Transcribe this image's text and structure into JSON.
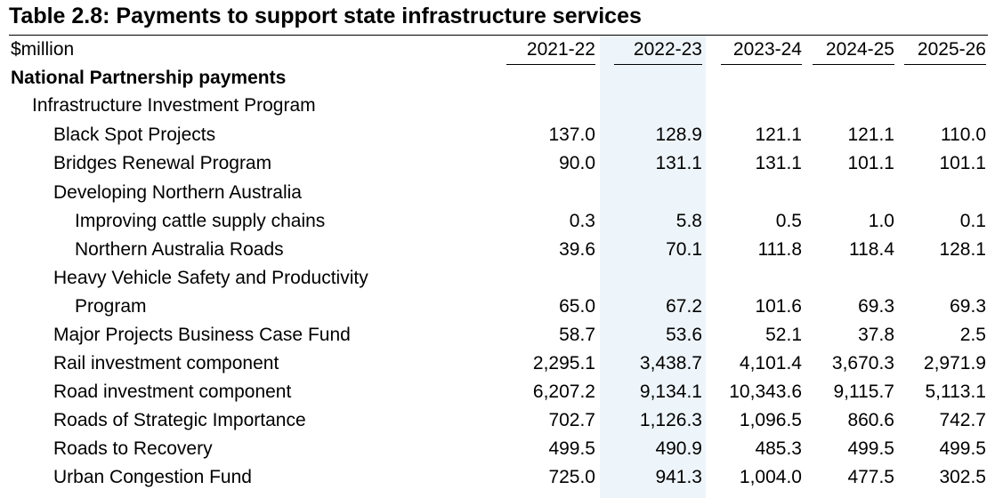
{
  "title": "Table 2.8: Payments to support state infrastructure services",
  "unit_label": "$million",
  "years": [
    "2021-22",
    "2022-23",
    "2023-24",
    "2024-25",
    "2025-26"
  ],
  "rows": [
    {
      "label": "National Partnership payments",
      "values": [
        "",
        "",
        "",
        "",
        ""
      ]
    },
    {
      "label": "Infrastructure Investment Program",
      "values": [
        "",
        "",
        "",
        "",
        ""
      ]
    },
    {
      "label": "Black Spot Projects",
      "values": [
        "137.0",
        "128.9",
        "121.1",
        "121.1",
        "110.0"
      ]
    },
    {
      "label": "Bridges Renewal Program",
      "values": [
        "90.0",
        "131.1",
        "131.1",
        "101.1",
        "101.1"
      ]
    },
    {
      "label": "Developing Northern Australia",
      "values": [
        "",
        "",
        "",
        "",
        ""
      ]
    },
    {
      "label": "Improving cattle supply chains",
      "values": [
        "0.3",
        "5.8",
        "0.5",
        "1.0",
        "0.1"
      ]
    },
    {
      "label": "Northern Australia Roads",
      "values": [
        "39.6",
        "70.1",
        "111.8",
        "118.4",
        "128.1"
      ]
    },
    {
      "label": "Heavy Vehicle Safety and Productivity",
      "values": [
        "",
        "",
        "",
        "",
        ""
      ]
    },
    {
      "label": "Program",
      "values": [
        "65.0",
        "67.2",
        "101.6",
        "69.3",
        "69.3"
      ]
    },
    {
      "label": "Major Projects Business Case Fund",
      "values": [
        "58.7",
        "53.6",
        "52.1",
        "37.8",
        "2.5"
      ]
    },
    {
      "label": "Rail investment component",
      "values": [
        "2,295.1",
        "3,438.7",
        "4,101.4",
        "3,670.3",
        "2,971.9"
      ]
    },
    {
      "label": "Road investment component",
      "values": [
        "6,207.2",
        "9,134.1",
        "10,343.6",
        "9,115.7",
        "5,113.1"
      ]
    },
    {
      "label": "Roads of Strategic Importance",
      "values": [
        "702.7",
        "1,126.3",
        "1,096.5",
        "860.6",
        "742.7"
      ]
    },
    {
      "label": "Roads to Recovery",
      "values": [
        "499.5",
        "490.9",
        "485.3",
        "499.5",
        "499.5"
      ]
    },
    {
      "label": "Urban Congestion Fund",
      "values": [
        "725.0",
        "941.3",
        "1,004.0",
        "477.5",
        "302.5"
      ]
    }
  ]
}
